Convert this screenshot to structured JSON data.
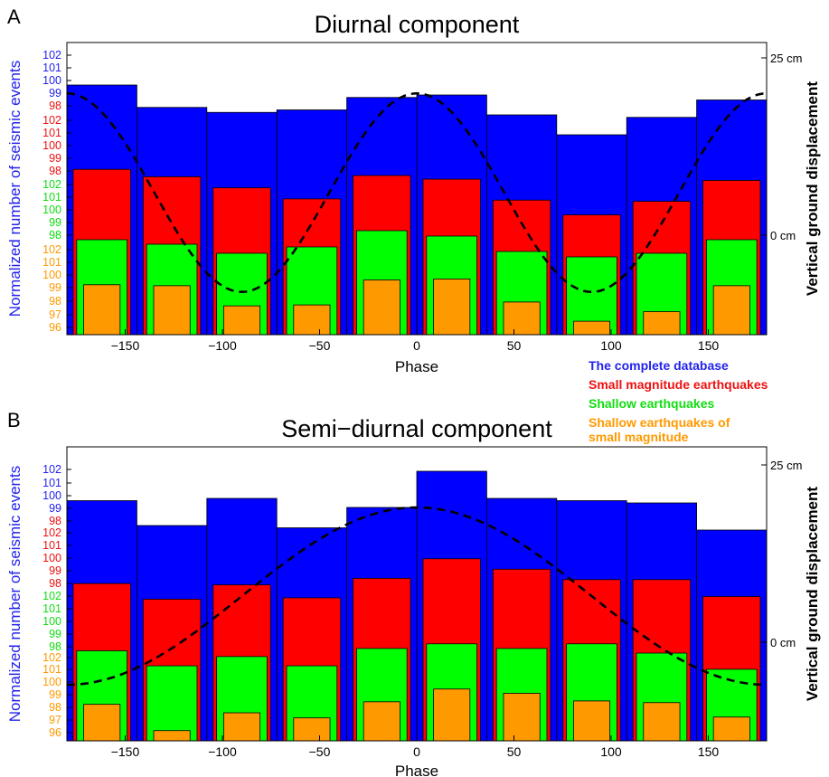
{
  "legend": [
    {
      "label": "The complete database",
      "color": "#2222ee"
    },
    {
      "label": "Small magnitude earthquakes",
      "color": "#ee1111"
    },
    {
      "label": "Shallow earthquakes",
      "color": "#11dd11"
    },
    {
      "label": "Shallow earthquakes of\nsmall magnitude",
      "color": "#ff9900"
    }
  ],
  "colors": {
    "complete": "#0000ff",
    "small": "#ff0000",
    "shallow": "#00ff00",
    "shallow_small": "#ff9900",
    "tick_blue": "#2222ee",
    "tick_red": "#ee1111",
    "tick_green": "#11dd11",
    "tick_orange": "#ff9900"
  },
  "chart_data": [
    {
      "panel_letter": "A",
      "type": "bar",
      "title": "Diurnal component",
      "xlabel": "Phase",
      "ylabel": "Normalized number of seismic events",
      "y2label": "Vertical ground displacement",
      "xlim": [
        -180,
        180
      ],
      "xticks": [
        -150,
        -100,
        -50,
        0,
        50,
        100,
        150
      ],
      "x": [
        -162,
        -126,
        -90,
        -54,
        -18,
        18,
        54,
        90,
        126,
        162
      ],
      "y_ticks": {
        "complete": [
          "102",
          "101",
          "100",
          "99"
        ],
        "small": [
          "98",
          "102",
          "101",
          "100",
          "99",
          "98"
        ],
        "shallow": [
          "102",
          "101",
          "100",
          "99",
          "98"
        ],
        "shallow_small": [
          "102",
          "101",
          "100",
          "99",
          "98",
          "97",
          "96"
        ]
      },
      "y2_ticks": [
        "25 cm",
        "0 cm"
      ],
      "series": [
        {
          "name": "The complete database",
          "values": [
            101.0,
            100.1,
            99.9,
            100.0,
            100.5,
            100.6,
            99.8,
            98.9,
            99.7,
            100.4
          ]
        },
        {
          "name": "Small magnitude earthquakes",
          "values": [
            101.6,
            101.0,
            100.1,
            99.2,
            101.1,
            100.8,
            99.1,
            97.9,
            99.0,
            100.7
          ]
        },
        {
          "name": "Shallow earthquakes",
          "values": [
            100.7,
            100.2,
            99.2,
            99.9,
            101.7,
            101.1,
            99.4,
            98.8,
            99.2,
            100.7
          ]
        },
        {
          "name": "Shallow earthquakes of small magnitude",
          "values": [
            101.2,
            101.1,
            99.0,
            99.1,
            101.7,
            101.8,
            99.4,
            97.4,
            98.4,
            101.1
          ]
        }
      ],
      "displacement_curve": {
        "period": 360,
        "peak_phase": 0,
        "max_cm": 20,
        "min_cm": -8
      }
    },
    {
      "panel_letter": "B",
      "type": "bar",
      "title": "Semi−diurnal component",
      "xlabel": "Phase",
      "ylabel": "Normalized number of seismic events",
      "y2label": "Vertical ground displacement",
      "xlim": [
        -180,
        180
      ],
      "xticks": [
        -150,
        -100,
        -50,
        0,
        50,
        100,
        150
      ],
      "x": [
        -162,
        -126,
        -90,
        -54,
        -18,
        18,
        54,
        90,
        126,
        162
      ],
      "y_ticks": {
        "complete": [
          "102",
          "101",
          "100",
          "99"
        ],
        "small": [
          "98",
          "102",
          "101",
          "100",
          "99",
          "98"
        ],
        "shallow": [
          "102",
          "101",
          "100",
          "99",
          "98"
        ],
        "shallow_small": [
          "102",
          "101",
          "100",
          "99",
          "98",
          "97",
          "96"
        ]
      },
      "y2_ticks": [
        "25 cm",
        "0 cm"
      ],
      "series": [
        {
          "name": "The complete database",
          "values": [
            100.3,
            99.2,
            100.4,
            99.1,
            100.0,
            101.6,
            100.4,
            100.3,
            100.2,
            98.8
          ]
        },
        {
          "name": "Small magnitude earthquakes",
          "values": [
            100.2,
            99.0,
            100.1,
            99.1,
            100.6,
            102.1,
            101.3,
            100.5,
            100.5,
            99.2
          ]
        },
        {
          "name": "Shallow earthquakes",
          "values": [
            100.2,
            98.9,
            99.7,
            98.9,
            100.4,
            100.8,
            100.4,
            100.8,
            100.0,
            98.6
          ]
        },
        {
          "name": "Shallow earthquakes of small magnitude",
          "values": [
            100.3,
            97.2,
            99.3,
            98.7,
            100.6,
            102.1,
            101.6,
            100.7,
            100.5,
            98.8
          ]
        }
      ],
      "displacement_curve": {
        "period": 360,
        "peak_phase": 0,
        "max_cm": 19,
        "min_cm": -6,
        "range_min_cm": -6
      }
    }
  ]
}
